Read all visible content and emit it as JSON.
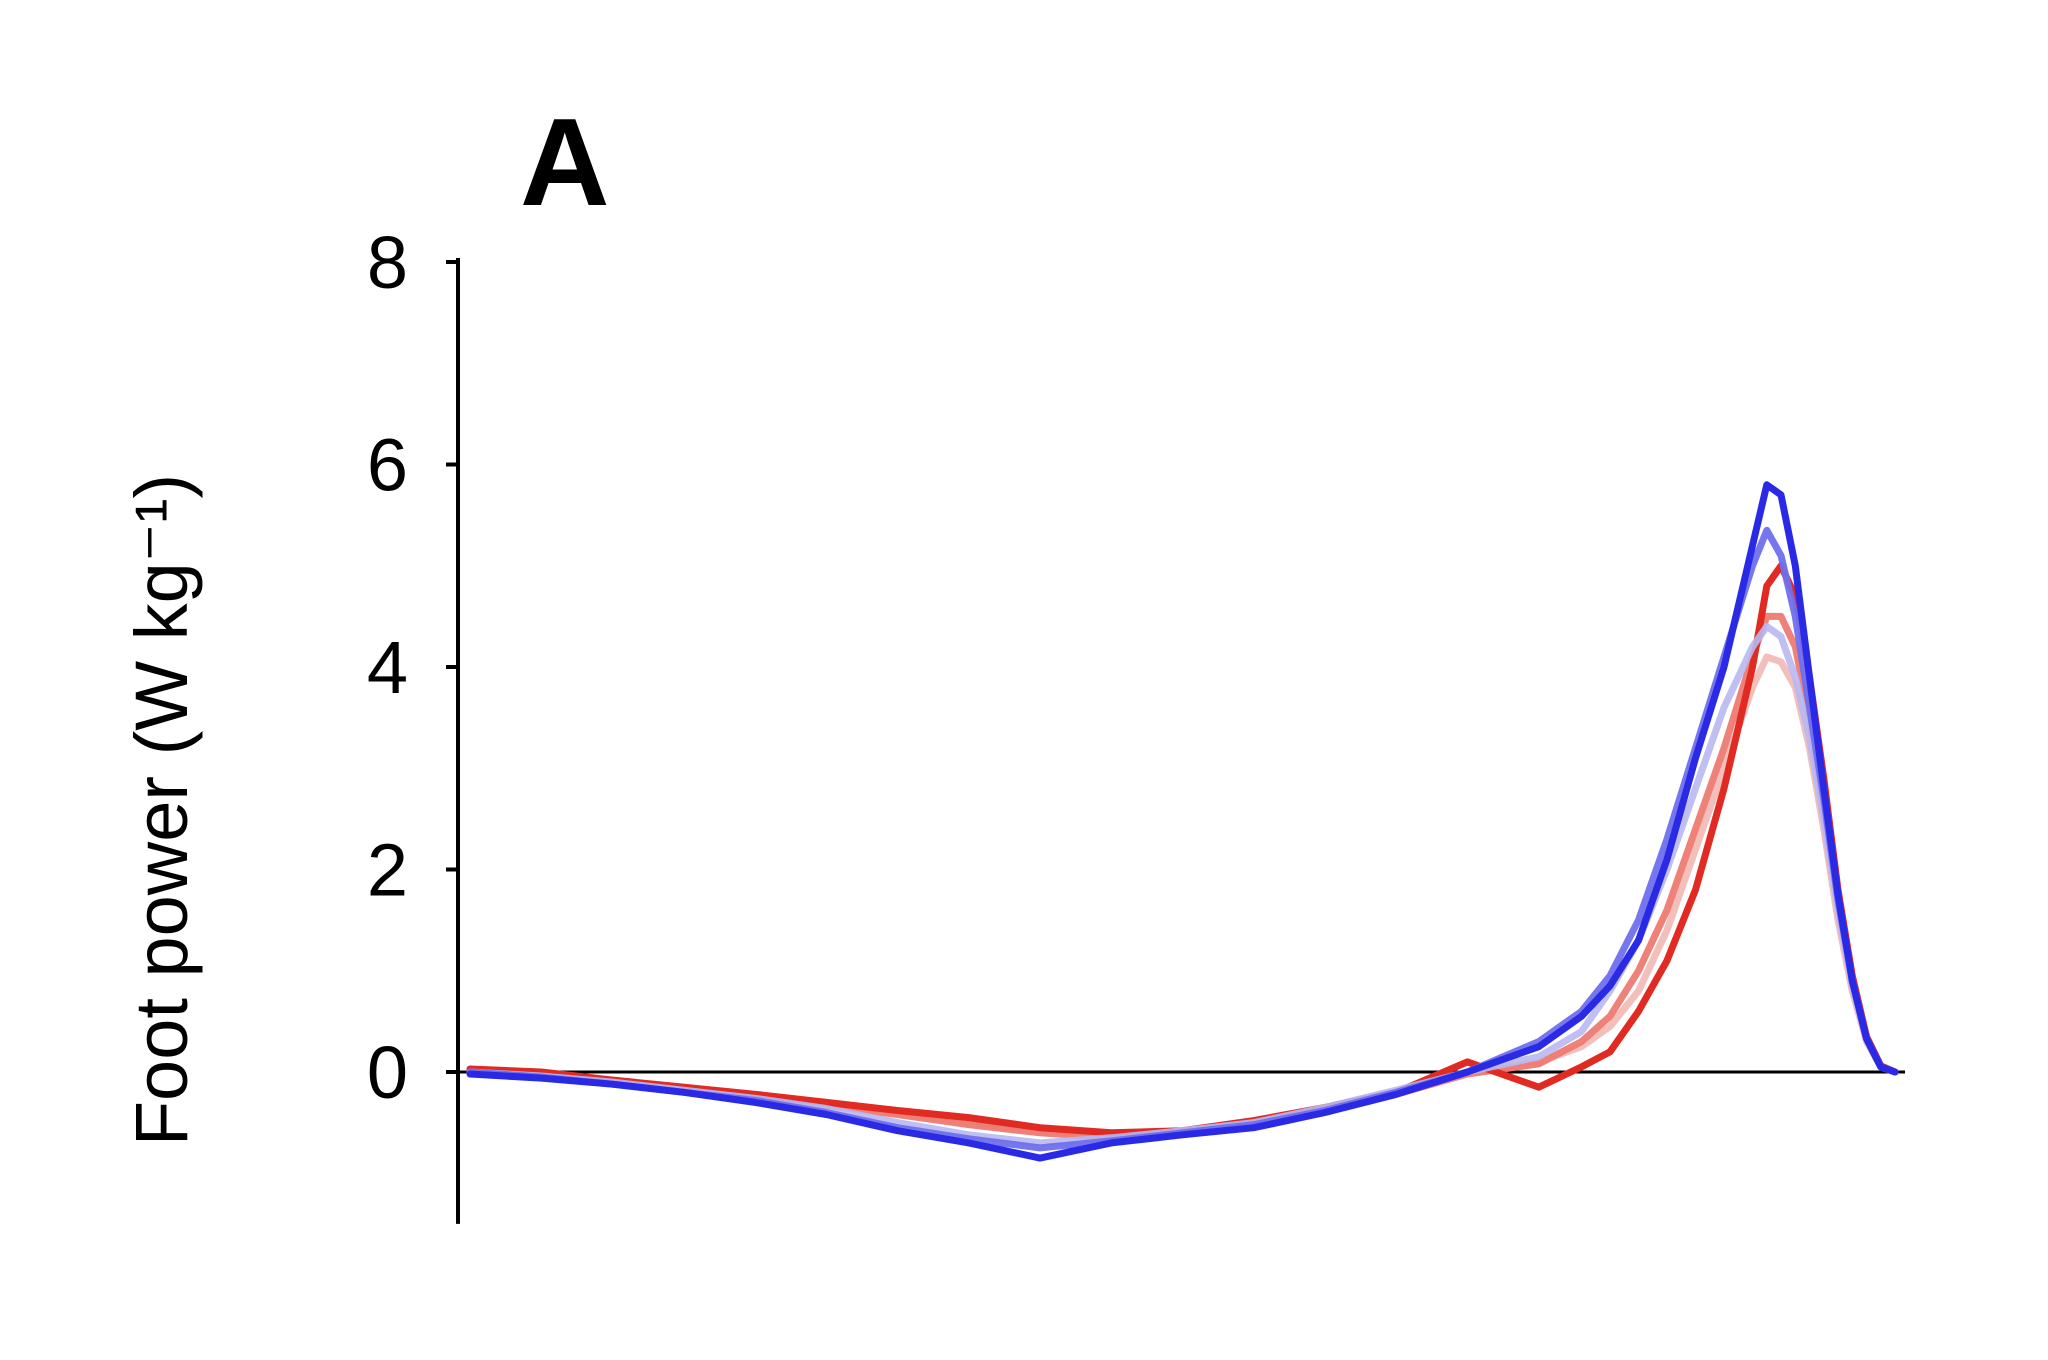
{
  "chart_data": {
    "type": "line",
    "title": "A",
    "xlabel": "",
    "ylabel": "Foot power (W kg⁻¹)",
    "xlim": [
      0,
      100
    ],
    "ylim": [
      -1.5,
      8
    ],
    "yticks": [
      0,
      2,
      4,
      6,
      8
    ],
    "ytick_labels": [
      "0",
      "2",
      "4",
      "6",
      "8"
    ],
    "grid": false,
    "legend": "none",
    "x": [
      0,
      5,
      10,
      15,
      20,
      25,
      30,
      35,
      40,
      45,
      50,
      55,
      60,
      65,
      70,
      75,
      78,
      80,
      82,
      84,
      86,
      88,
      90,
      91,
      92,
      93,
      94,
      95,
      96,
      97,
      98,
      99,
      100
    ],
    "series": [
      {
        "color": "#f2b8b4",
        "opacity": 0.9,
        "values": [
          0.0,
          -0.02,
          -0.08,
          -0.15,
          -0.22,
          -0.3,
          -0.4,
          -0.5,
          -0.58,
          -0.62,
          -0.6,
          -0.5,
          -0.35,
          -0.2,
          0.0,
          0.1,
          0.25,
          0.45,
          0.8,
          1.4,
          2.2,
          3.0,
          3.8,
          4.1,
          4.05,
          3.8,
          3.2,
          2.4,
          1.5,
          0.8,
          0.3,
          0.05,
          0.0
        ]
      },
      {
        "color": "#ee7a72",
        "opacity": 0.95,
        "values": [
          0.02,
          -0.02,
          -0.1,
          -0.18,
          -0.25,
          -0.33,
          -0.42,
          -0.52,
          -0.6,
          -0.65,
          -0.62,
          -0.52,
          -0.38,
          -0.22,
          -0.02,
          0.08,
          0.3,
          0.55,
          1.0,
          1.6,
          2.4,
          3.2,
          4.1,
          4.5,
          4.5,
          4.2,
          3.5,
          2.6,
          1.7,
          0.9,
          0.35,
          0.06,
          0.0
        ]
      },
      {
        "color": "#e02a22",
        "opacity": 1.0,
        "values": [
          0.03,
          0.0,
          -0.08,
          -0.15,
          -0.22,
          -0.3,
          -0.38,
          -0.45,
          -0.55,
          -0.6,
          -0.58,
          -0.48,
          -0.35,
          -0.2,
          0.1,
          -0.15,
          0.05,
          0.2,
          0.6,
          1.1,
          1.8,
          2.8,
          4.0,
          4.8,
          5.0,
          4.7,
          3.9,
          2.9,
          1.8,
          0.95,
          0.35,
          0.06,
          0.0
        ]
      },
      {
        "color": "#b8b8f2",
        "opacity": 0.9,
        "values": [
          0.0,
          -0.04,
          -0.1,
          -0.18,
          -0.26,
          -0.36,
          -0.5,
          -0.62,
          -0.7,
          -0.65,
          -0.58,
          -0.5,
          -0.35,
          -0.18,
          0.0,
          0.15,
          0.4,
          0.8,
          1.3,
          2.0,
          2.8,
          3.6,
          4.2,
          4.4,
          4.3,
          3.9,
          3.3,
          2.5,
          1.6,
          0.85,
          0.32,
          0.05,
          0.0
        ]
      },
      {
        "color": "#6f6fee",
        "opacity": 0.95,
        "values": [
          0.0,
          -0.05,
          -0.12,
          -0.2,
          -0.28,
          -0.4,
          -0.55,
          -0.66,
          -0.75,
          -0.68,
          -0.6,
          -0.52,
          -0.38,
          -0.2,
          0.0,
          0.3,
          0.6,
          0.95,
          1.5,
          2.3,
          3.2,
          4.1,
          5.0,
          5.35,
          5.1,
          4.5,
          3.6,
          2.7,
          1.7,
          0.9,
          0.33,
          0.05,
          0.0
        ]
      },
      {
        "color": "#2a2ae6",
        "opacity": 1.0,
        "values": [
          -0.02,
          -0.06,
          -0.12,
          -0.2,
          -0.3,
          -0.42,
          -0.58,
          -0.7,
          -0.85,
          -0.7,
          -0.62,
          -0.55,
          -0.4,
          -0.22,
          0.0,
          0.25,
          0.55,
          0.85,
          1.3,
          2.1,
          3.1,
          4.0,
          5.2,
          5.8,
          5.7,
          5.0,
          3.9,
          2.8,
          1.75,
          0.9,
          0.33,
          0.05,
          0.0
        ]
      }
    ]
  }
}
